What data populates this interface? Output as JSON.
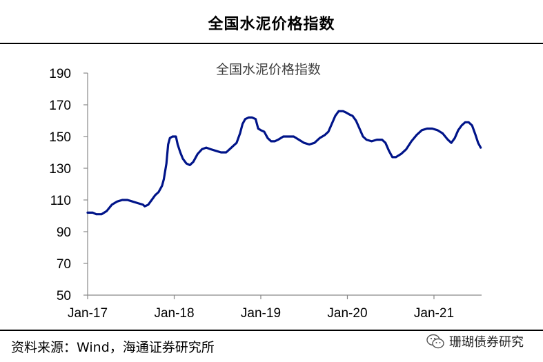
{
  "header": {
    "title": "全国水泥价格指数"
  },
  "source_note": "资料来源：Wind，海通证券研究所",
  "watermark": {
    "text": "珊瑚债券研究",
    "icon": "wechat-icon"
  },
  "colors": {
    "line": "#001489",
    "axis": "#888888"
  },
  "chart_data": {
    "type": "line",
    "title": "全国水泥价格指数",
    "xlabel": "",
    "ylabel": "",
    "ylim": [
      50,
      190
    ],
    "yticks": [
      50,
      70,
      90,
      110,
      130,
      150,
      170,
      190
    ],
    "xticks": [
      {
        "label": "Jan-17",
        "x": 2017.0
      },
      {
        "label": "Jan-18",
        "x": 2018.0
      },
      {
        "label": "Jan-19",
        "x": 2019.0
      },
      {
        "label": "Jan-20",
        "x": 2020.0
      },
      {
        "label": "Jan-21",
        "x": 2021.0
      }
    ],
    "xlim": [
      2017.0,
      2021.55
    ],
    "grid": false,
    "series": [
      {
        "name": "",
        "points": [
          [
            2017.0,
            102
          ],
          [
            2017.06,
            102
          ],
          [
            2017.1,
            101
          ],
          [
            2017.16,
            101
          ],
          [
            2017.22,
            103
          ],
          [
            2017.28,
            107
          ],
          [
            2017.34,
            109
          ],
          [
            2017.4,
            110
          ],
          [
            2017.46,
            110
          ],
          [
            2017.52,
            109
          ],
          [
            2017.58,
            108
          ],
          [
            2017.64,
            107
          ],
          [
            2017.66,
            106
          ],
          [
            2017.7,
            107
          ],
          [
            2017.74,
            110
          ],
          [
            2017.78,
            113
          ],
          [
            2017.82,
            115
          ],
          [
            2017.86,
            119
          ],
          [
            2017.88,
            123
          ],
          [
            2017.91,
            133
          ],
          [
            2017.93,
            145
          ],
          [
            2017.95,
            149
          ],
          [
            2017.98,
            150
          ],
          [
            2018.02,
            150
          ],
          [
            2018.04,
            145
          ],
          [
            2018.07,
            140
          ],
          [
            2018.1,
            136
          ],
          [
            2018.14,
            133
          ],
          [
            2018.18,
            132
          ],
          [
            2018.22,
            134
          ],
          [
            2018.27,
            139
          ],
          [
            2018.32,
            142
          ],
          [
            2018.37,
            143
          ],
          [
            2018.42,
            142
          ],
          [
            2018.48,
            141
          ],
          [
            2018.54,
            140
          ],
          [
            2018.6,
            140
          ],
          [
            2018.64,
            142
          ],
          [
            2018.68,
            144
          ],
          [
            2018.72,
            146
          ],
          [
            2018.76,
            152
          ],
          [
            2018.79,
            158
          ],
          [
            2018.82,
            161
          ],
          [
            2018.86,
            162
          ],
          [
            2018.9,
            162
          ],
          [
            2018.94,
            161
          ],
          [
            2018.97,
            155
          ],
          [
            2019.0,
            154
          ],
          [
            2019.04,
            153
          ],
          [
            2019.08,
            149
          ],
          [
            2019.12,
            147
          ],
          [
            2019.16,
            147
          ],
          [
            2019.2,
            148
          ],
          [
            2019.26,
            150
          ],
          [
            2019.32,
            150
          ],
          [
            2019.38,
            150
          ],
          [
            2019.44,
            148
          ],
          [
            2019.5,
            146
          ],
          [
            2019.56,
            145
          ],
          [
            2019.62,
            146
          ],
          [
            2019.68,
            149
          ],
          [
            2019.74,
            151
          ],
          [
            2019.78,
            153
          ],
          [
            2019.82,
            158
          ],
          [
            2019.86,
            163
          ],
          [
            2019.9,
            166
          ],
          [
            2019.95,
            166
          ],
          [
            2019.99,
            165
          ],
          [
            2020.02,
            164
          ],
          [
            2020.06,
            163
          ],
          [
            2020.1,
            160
          ],
          [
            2020.14,
            155
          ],
          [
            2020.18,
            150
          ],
          [
            2020.22,
            148
          ],
          [
            2020.28,
            147
          ],
          [
            2020.34,
            148
          ],
          [
            2020.4,
            148
          ],
          [
            2020.44,
            146
          ],
          [
            2020.48,
            141
          ],
          [
            2020.52,
            137
          ],
          [
            2020.56,
            137
          ],
          [
            2020.62,
            139
          ],
          [
            2020.68,
            142
          ],
          [
            2020.74,
            147
          ],
          [
            2020.8,
            151
          ],
          [
            2020.86,
            154
          ],
          [
            2020.92,
            155
          ],
          [
            2020.98,
            155
          ],
          [
            2021.04,
            154
          ],
          [
            2021.1,
            152
          ],
          [
            2021.16,
            148
          ],
          [
            2021.2,
            146
          ],
          [
            2021.24,
            149
          ],
          [
            2021.28,
            154
          ],
          [
            2021.32,
            157
          ],
          [
            2021.36,
            159
          ],
          [
            2021.4,
            159
          ],
          [
            2021.44,
            157
          ],
          [
            2021.48,
            151
          ],
          [
            2021.51,
            146
          ],
          [
            2021.54,
            143
          ]
        ]
      }
    ]
  }
}
